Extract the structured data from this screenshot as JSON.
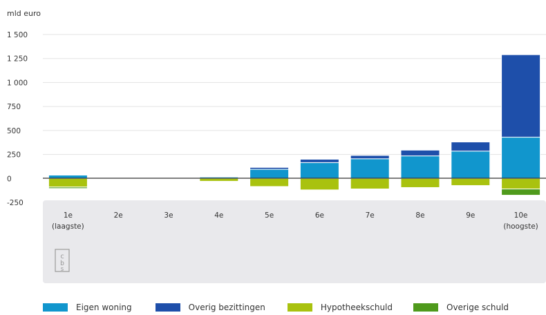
{
  "chart_data": {
    "type": "bar",
    "stacked": true,
    "unit_label": "mld euro",
    "categories": [
      "1e\n(laagste)",
      "2e",
      "3e",
      "4e",
      "5e",
      "6e",
      "7e",
      "8e",
      "9e",
      "10e\n(hoogste)"
    ],
    "yticks": [
      "1 500",
      "1 250",
      "1 000",
      "750",
      "500",
      "250",
      "0",
      "-250"
    ],
    "ylim": [
      -250,
      1500
    ],
    "grid": true,
    "legend_position": "bottom",
    "series": [
      {
        "name": "Eigen woning",
        "color": "#1196CD",
        "values": [
          35,
          0,
          0,
          15,
          95,
          165,
          205,
          235,
          285,
          430
        ]
      },
      {
        "name": "Overig bezittingen",
        "color": "#1E4FAA",
        "values": [
          5,
          0,
          0,
          5,
          20,
          35,
          35,
          60,
          95,
          860
        ]
      },
      {
        "name": "Hypotheekschuld",
        "color": "#A9C20F",
        "values": [
          -90,
          0,
          0,
          -30,
          -85,
          -120,
          -110,
          -95,
          -75,
          -110
        ]
      },
      {
        "name": "Overige schuld",
        "color": "#4F9A1C",
        "values": [
          -15,
          0,
          0,
          -5,
          -5,
          -5,
          -5,
          -5,
          -5,
          -65
        ]
      }
    ]
  },
  "logo_text": "cbs"
}
